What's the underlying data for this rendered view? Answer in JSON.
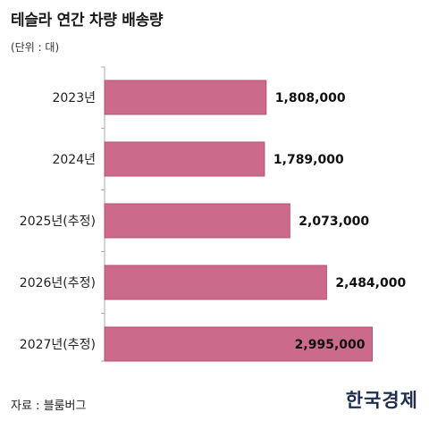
{
  "header": {
    "title": "테슬라 연간 차량 배송량",
    "unit": "(단위 : 대)"
  },
  "footer": {
    "source": "자료 : 블룸버그",
    "logo_text": "한국경제"
  },
  "colors": {
    "bar_fill": "#cc6a8c",
    "bar_stroke": "#b84f74",
    "axis": "#aaaaaa",
    "logo": "#1f2f52"
  },
  "chart_data": {
    "type": "bar",
    "orientation": "horizontal",
    "categories": [
      "2023년",
      "2024년",
      "2025년(추정)",
      "2026년(추정)",
      "2027년(추정)"
    ],
    "values": [
      1808000,
      1789000,
      2073000,
      2484000,
      2995000
    ],
    "value_labels": [
      "1,808,000",
      "1,789,000",
      "2,073,000",
      "2,484,000",
      "2,995,000"
    ],
    "title": "테슬라 연간 차량 배송량",
    "xlabel": "",
    "ylabel": "",
    "xlim": [
      0,
      3000000
    ],
    "grid": false,
    "legend": "none"
  }
}
